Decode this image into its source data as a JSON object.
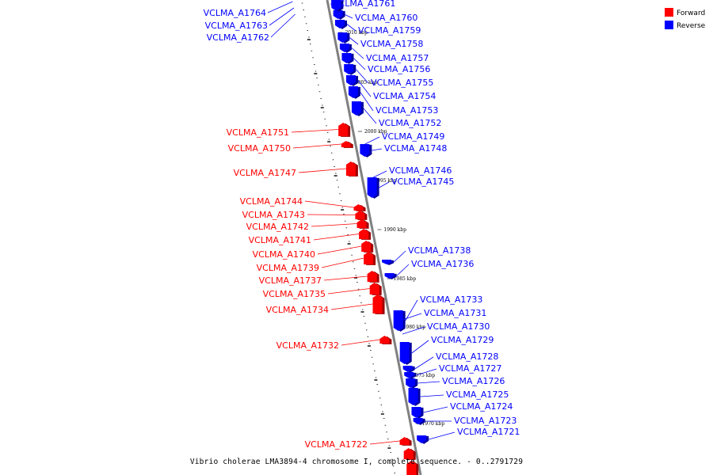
{
  "caption": "Vibrio cholerae LMA3894-4 chromosome I, complete sequence. - 0..2791729",
  "legend": {
    "items": [
      {
        "label": "Forward",
        "color": "#ff0000"
      },
      {
        "label": "Reverse",
        "color": "#0000ff"
      }
    ]
  },
  "colors": {
    "forward": "#ff0000",
    "reverse": "#0000ff",
    "axis": "#808080"
  },
  "scale_labels": [
    "2010 kbp",
    "2005 kbp",
    "2000 kbp",
    "1995 kbp",
    "1990 kbp",
    "1985 kbp",
    "1980 kbp",
    "1975 kbp",
    "1970 kbp"
  ],
  "genes_reverse": [
    "VCLMA_A1761",
    "VCLMA_A1760",
    "VCLMA_A1759",
    "VCLMA_A1758",
    "VCLMA_A1757",
    "VCLMA_A1756",
    "VCLMA_A1755",
    "VCLMA_A1754",
    "VCLMA_A1753",
    "VCLMA_A1752",
    "VCLMA_A1749",
    "VCLMA_A1748",
    "VCLMA_A1746",
    "VCLMA_A1745",
    "VCLMA_A1738",
    "VCLMA_A1736",
    "VCLMA_A1733",
    "VCLMA_A1731",
    "VCLMA_A1730",
    "VCLMA_A1729",
    "VCLMA_A1728",
    "VCLMA_A1727",
    "VCLMA_A1726",
    "VCLMA_A1725",
    "VCLMA_A1724",
    "VCLMA_A1723",
    "VCLMA_A1721"
  ],
  "genes_reverse_left": [
    "VCLMA_A1764",
    "VCLMA_A1763",
    "VCLMA_A1762"
  ],
  "genes_forward": [
    "VCLMA_A1751",
    "VCLMA_A1750",
    "VCLMA_A1747",
    "VCLMA_A1744",
    "VCLMA_A1743",
    "VCLMA_A1742",
    "VCLMA_A1741",
    "VCLMA_A1740",
    "VCLMA_A1739",
    "VCLMA_A1737",
    "VCLMA_A1735",
    "VCLMA_A1734",
    "VCLMA_A1732",
    "VCLMA_A1722"
  ]
}
